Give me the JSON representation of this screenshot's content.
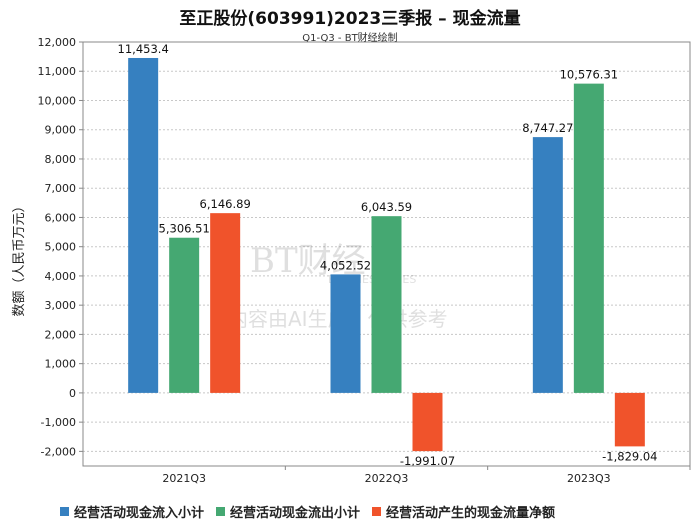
{
  "chart_data": {
    "type": "bar",
    "title": "至正股份(603991)2023三季报 – 现金流量",
    "subtitle": "Q1-Q3 - BT财经绘制",
    "ylabel": "数额（人民币万元）",
    "xlabel": "",
    "ylim": [
      -2500,
      12000
    ],
    "yticks": [
      "12,000",
      "11,000",
      "10,000",
      "9,000",
      "8,000",
      "7,000",
      "6,000",
      "5,000",
      "4,000",
      "3,000",
      "2,000",
      "1,000",
      "0",
      "-1,000",
      "-2,000"
    ],
    "categories": [
      "2021Q3",
      "2022Q3",
      "2023Q3"
    ],
    "series": [
      {
        "name": "经营活动现金流入小计",
        "color": "#3680c0",
        "values": [
          11453.4,
          4052.52,
          8747.27
        ],
        "labels": [
          "11,453.4",
          "4,052.52",
          "8,747.27"
        ]
      },
      {
        "name": "经营活动现金流出小计",
        "color": "#45a872",
        "values": [
          5306.51,
          6043.59,
          10576.31
        ],
        "labels": [
          "5,306.51",
          "6,043.59",
          "10,576.31"
        ]
      },
      {
        "name": "经营活动产生的现金流量净额",
        "color": "#f0532b",
        "values": [
          6146.89,
          -1991.07,
          -1829.04
        ],
        "labels": [
          "6,146.89",
          "-1,991.07",
          "-1,829.04"
        ]
      }
    ],
    "grid": true,
    "legend_position": "bottom-left"
  },
  "watermark": {
    "logo": "BT财经",
    "sub": "BUSINESSTIMES",
    "note": "内容由AI生成，仅供参考"
  }
}
